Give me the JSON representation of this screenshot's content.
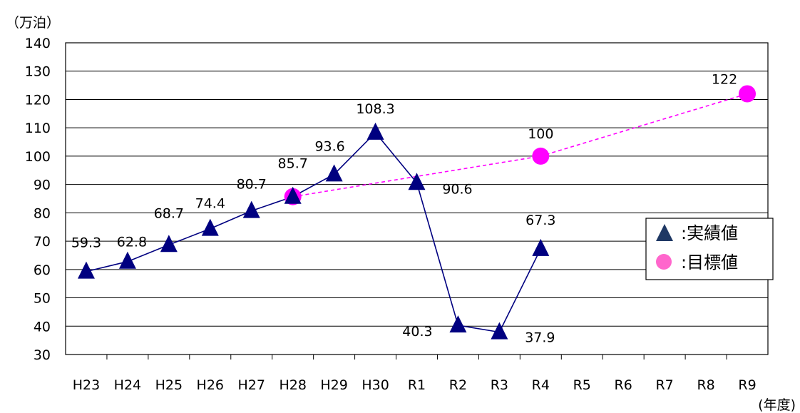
{
  "chart_data": {
    "type": "line",
    "y_unit": "（万泊）",
    "x_unit": "(年度)",
    "categories": [
      "H23",
      "H24",
      "H25",
      "H26",
      "H27",
      "H28",
      "H29",
      "H30",
      "R1",
      "R2",
      "R3",
      "R4",
      "R5",
      "R6",
      "R7",
      "R8",
      "R9"
    ],
    "ylim": [
      30,
      140
    ],
    "yticks": [
      30,
      40,
      50,
      60,
      70,
      80,
      90,
      100,
      110,
      120,
      130,
      140
    ],
    "grid": true,
    "legend_position": "right",
    "series": [
      {
        "name": "実績値",
        "marker": "triangle",
        "color": "#000080",
        "line_style": "solid",
        "points": [
          {
            "x": "H23",
            "y": 59.3,
            "label": "59.3"
          },
          {
            "x": "H24",
            "y": 62.8,
            "label": "62.8"
          },
          {
            "x": "H25",
            "y": 68.7,
            "label": "68.7"
          },
          {
            "x": "H26",
            "y": 74.4,
            "label": "74.4"
          },
          {
            "x": "H27",
            "y": 80.7,
            "label": "80.7"
          },
          {
            "x": "H28",
            "y": 85.7,
            "label": "85.7"
          },
          {
            "x": "H29",
            "y": 93.6,
            "label": "93.6"
          },
          {
            "x": "H30",
            "y": 108.3,
            "label": "108.3"
          },
          {
            "x": "R1",
            "y": 90.6,
            "label": "90.6"
          },
          {
            "x": "R2",
            "y": 40.3,
            "label": "40.3"
          },
          {
            "x": "R3",
            "y": 37.9,
            "label": "37.9"
          },
          {
            "x": "R4",
            "y": 67.3,
            "label": "67.3"
          }
        ]
      },
      {
        "name": "目標値",
        "marker": "circle",
        "color": "#ff00ff",
        "line_style": "dashed",
        "points": [
          {
            "x": "H28",
            "y": 85.7,
            "label": ""
          },
          {
            "x": "R4",
            "y": 100,
            "label": "100"
          },
          {
            "x": "R9",
            "y": 122,
            "label": "122"
          }
        ]
      }
    ],
    "legend": [
      {
        "label": ":実績値",
        "marker": "triangle",
        "color": "#1f3864"
      },
      {
        "label": ":目標値",
        "marker": "circle",
        "color": "#ff66cc"
      }
    ]
  }
}
